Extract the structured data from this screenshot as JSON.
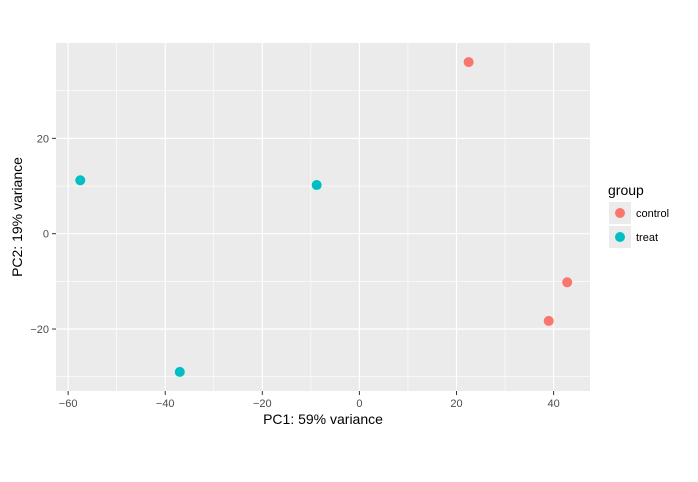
{
  "chart_data": {
    "type": "scatter",
    "title": "",
    "xlabel": "PC1: 59% variance",
    "ylabel": "PC2: 19% variance",
    "xlim": [
      -62.5,
      47.5
    ],
    "ylim": [
      -33,
      40
    ],
    "x_ticks": [
      -60,
      -40,
      -20,
      0,
      20,
      40
    ],
    "x_tick_labels": [
      "−60",
      "−40",
      "−20",
      "0",
      "20",
      "40"
    ],
    "y_ticks": [
      -20,
      0,
      20
    ],
    "y_tick_labels": [
      "−20",
      "0",
      "20"
    ],
    "grid": true,
    "legend": {
      "title": "group",
      "position": "right"
    },
    "series": [
      {
        "name": "control",
        "color": "#F8766D",
        "points": [
          {
            "x": 22.5,
            "y": 36.0
          },
          {
            "x": 42.8,
            "y": -10.2
          },
          {
            "x": 39.0,
            "y": -18.3
          }
        ]
      },
      {
        "name": "treat",
        "color": "#00BFC4",
        "points": [
          {
            "x": -57.5,
            "y": 11.2
          },
          {
            "x": -8.8,
            "y": 10.2
          },
          {
            "x": -37.0,
            "y": -29.0
          }
        ]
      }
    ]
  }
}
